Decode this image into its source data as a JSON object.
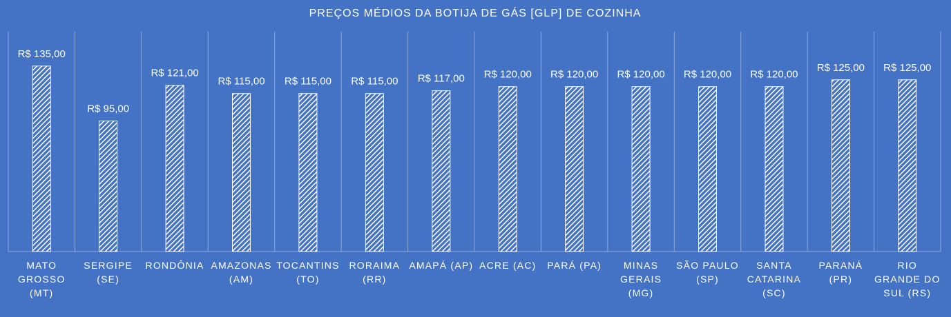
{
  "chart_data": {
    "type": "bar",
    "title": "PREÇOS MÉDIOS DA BOTIJA DE GÁS [GLP] DE COZINHA",
    "categories": [
      "MATO GROSSO (MT)",
      "SERGIPE (SE)",
      "RONDÔNIA",
      "AMAZONAS (AM)",
      "TOCANTINS (TO)",
      "RORAIMA (RR)",
      "AMAPÁ (AP)",
      "ACRE (AC)",
      "PARÁ (PA)",
      "MINAS GERAIS (MG)",
      "SÃO PAULO (SP)",
      "SANTA CATARINA (SC)",
      "PARANÁ (PR)",
      "RIO GRANDE DO SUL (RS)"
    ],
    "values": [
      135,
      95,
      121,
      115,
      115,
      115,
      117,
      120,
      120,
      120,
      120,
      120,
      125,
      125
    ],
    "value_labels": [
      "R$ 135,00",
      "R$ 95,00",
      "R$ 121,00",
      "R$ 115,00",
      "R$ 115,00",
      "R$ 115,00",
      "R$ 117,00",
      "R$ 120,00",
      "R$ 120,00",
      "R$ 120,00",
      "R$ 120,00",
      "R$ 120,00",
      "R$ 125,00",
      "R$ 125,00"
    ],
    "color": "#ffffff",
    "ylim": [
      0,
      160
    ]
  }
}
